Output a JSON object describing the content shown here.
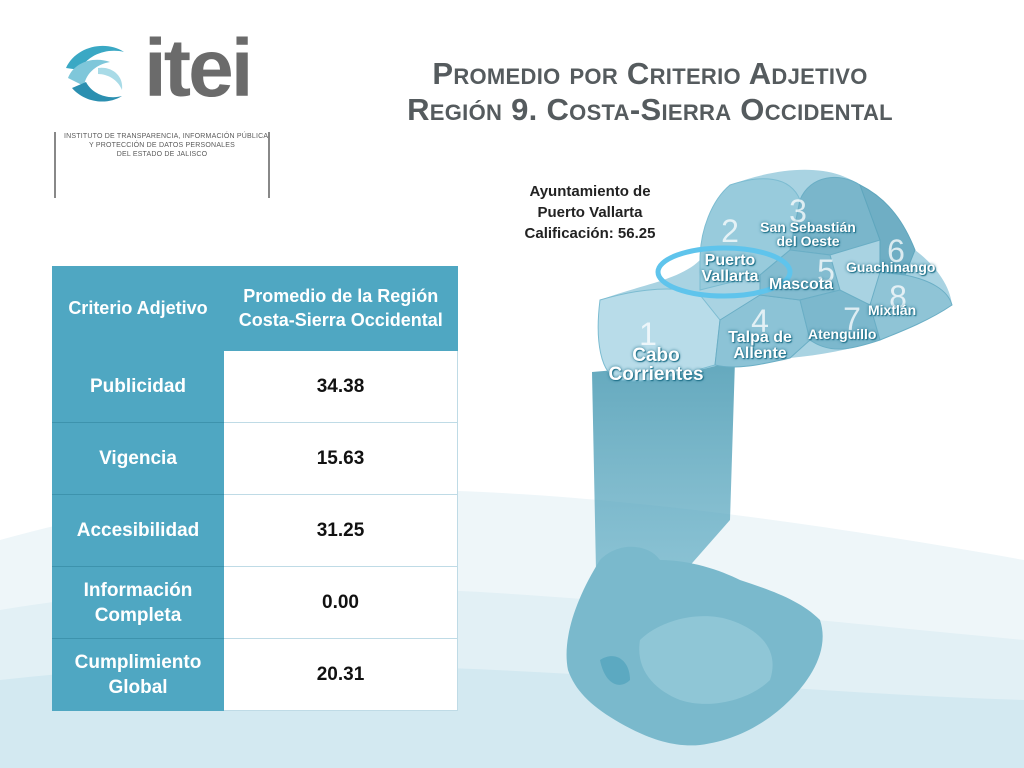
{
  "logo": {
    "icon": "itei-swirl-logo",
    "word": "itei",
    "subtitle_lines": [
      "INSTITUTO DE TRANSPARENCIA, INFORMACIÓN PÚBLICA",
      "Y PROTECCIÓN DE DATOS PERSONALES",
      "DEL ESTADO DE JALISCO"
    ]
  },
  "title": {
    "line1": "Promedio por Criterio Adjetivo",
    "line2": "Región 9. Costa-Sierra Occidental"
  },
  "caption": {
    "line1": "Ayuntamiento de",
    "line2": "Puerto Vallarta",
    "line3": "Calificación: 56.25"
  },
  "table": {
    "headers": [
      "Criterio Adjetivo",
      "Promedio de la Región Costa-Sierra Occidental"
    ],
    "rows": [
      {
        "criterio": "Publicidad",
        "valor": "34.38"
      },
      {
        "criterio": "Vigencia",
        "valor": "15.63"
      },
      {
        "criterio": "Accesibilidad",
        "valor": "31.25"
      },
      {
        "criterio": "Información Completa",
        "valor": "0.00"
      },
      {
        "criterio": "Cumplimiento Global",
        "valor": "20.31"
      }
    ]
  },
  "map": {
    "numbers": [
      "1",
      "2",
      "3",
      "4",
      "5",
      "6",
      "7",
      "8"
    ],
    "labels": {
      "cabo_corrientes": {
        "l1": "Cabo",
        "l2": "Corrientes"
      },
      "puerto_vallarta": {
        "l1": "Puerto",
        "l2": "Vallarta"
      },
      "san_sebastian": {
        "l1": "San Sebastián",
        "l2": "del Oeste"
      },
      "guachinango": "Guachinango",
      "mascota": "Mascota",
      "mixtlan": "Mixtlán",
      "talpa": {
        "l1": "Talpa de",
        "l2": "Allente"
      },
      "atenguillo": "Atenguillo"
    },
    "highlight_color": "#5fc4ec"
  },
  "colors": {
    "accent": "#4fa7c2",
    "title": "#555b5e",
    "map_light": "#a9d3e2",
    "map_dark": "#3f94ae"
  }
}
